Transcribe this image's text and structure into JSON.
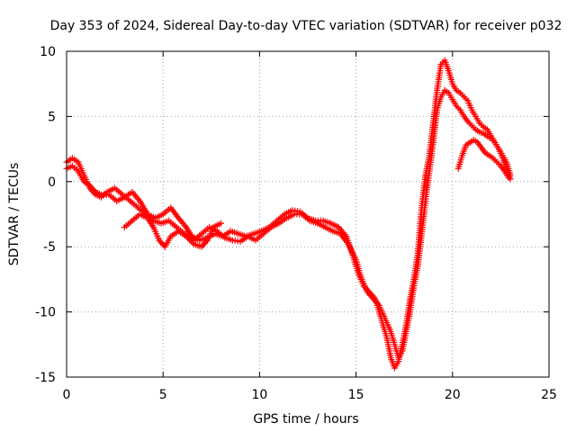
{
  "chart_data": {
    "type": "scatter",
    "title": "Day 353 of 2024, Sidereal Day-to-day VTEC variation (SDTVAR) for receiver p032",
    "xlabel": "GPS time / hours",
    "ylabel": "SDTVAR / TECUs",
    "xlim": [
      0,
      25
    ],
    "ylim": [
      -15,
      10
    ],
    "xticks": [
      0,
      5,
      10,
      15,
      20,
      25
    ],
    "xtick_labels": [
      "0",
      "5",
      "10",
      "15",
      "20",
      "25"
    ],
    "yticks": [
      -15,
      -10,
      -5,
      0,
      5,
      10
    ],
    "ytick_labels": [
      "-15",
      "-10",
      "-5",
      "0",
      "5",
      "10"
    ],
    "grid": true,
    "marker": "+",
    "color": "#ff0000",
    "series": [
      {
        "name": "p032-main",
        "x": [
          0.0,
          0.3,
          0.6,
          0.9,
          1.2,
          1.5,
          1.8,
          2.1,
          2.5,
          2.9,
          3.3,
          3.7,
          4.1,
          4.5,
          4.9,
          5.3,
          5.7,
          6.1,
          6.5,
          6.9,
          7.3,
          7.7,
          8.1,
          8.5,
          8.9,
          9.3,
          9.7,
          10.1,
          10.5,
          10.9,
          11.3,
          11.7,
          12.1,
          12.5,
          12.9,
          13.3,
          13.7,
          14.1,
          14.5,
          14.8,
          15.1,
          15.4,
          15.7,
          16.0,
          16.3,
          16.6,
          16.8,
          17.0,
          17.2,
          17.4,
          17.6,
          17.8,
          18.0,
          18.2,
          18.4,
          18.6,
          18.8,
          19.0,
          19.2,
          19.4,
          19.6,
          19.8,
          20.0,
          20.2,
          20.4,
          20.6,
          20.8,
          21.0,
          21.2,
          21.4,
          21.6,
          21.8,
          22.0,
          22.2,
          22.4,
          22.6,
          22.8,
          23.0
        ],
        "y": [
          1.5,
          1.8,
          1.5,
          0.5,
          -0.5,
          -1.0,
          -1.2,
          -0.8,
          -0.5,
          -1.0,
          -1.5,
          -2.0,
          -2.5,
          -3.0,
          -3.2,
          -3.0,
          -3.5,
          -4.0,
          -4.2,
          -4.5,
          -4.3,
          -4.0,
          -4.2,
          -3.8,
          -4.0,
          -4.2,
          -4.0,
          -3.8,
          -3.5,
          -3.0,
          -2.5,
          -2.2,
          -2.3,
          -2.8,
          -3.0,
          -3.0,
          -3.2,
          -3.5,
          -4.2,
          -5.5,
          -7.0,
          -8.0,
          -8.5,
          -9.0,
          -10.5,
          -12.0,
          -13.5,
          -14.3,
          -13.8,
          -12.5,
          -11.0,
          -9.0,
          -7.5,
          -5.5,
          -2.0,
          0.5,
          2.0,
          4.5,
          7.0,
          9.0,
          9.3,
          8.5,
          7.5,
          7.0,
          6.8,
          6.5,
          6.2,
          5.5,
          5.0,
          4.5,
          4.2,
          4.0,
          3.5,
          3.0,
          2.5,
          2.0,
          1.5,
          0.5
        ]
      },
      {
        "name": "p032-secondary",
        "x": [
          0.0,
          0.3,
          0.6,
          0.9,
          1.2,
          1.5,
          1.8,
          2.2,
          2.6,
          3.0,
          3.4,
          3.8,
          4.2,
          4.6,
          5.0,
          5.4,
          5.8,
          6.2,
          6.6,
          7.0,
          7.4,
          7.8,
          8.2,
          8.6,
          9.0,
          9.4,
          9.8,
          10.2,
          10.6,
          11.0,
          11.4,
          11.8,
          12.2,
          12.6,
          13.0,
          13.4,
          13.8,
          14.2,
          14.6,
          15.0,
          15.3,
          15.6,
          15.9,
          16.2,
          16.5,
          16.8,
          17.0,
          17.2,
          17.4,
          17.6,
          17.8,
          18.0,
          18.2,
          18.4,
          18.6,
          18.8,
          19.0,
          19.2,
          19.4,
          19.6,
          19.8,
          20.0,
          20.2,
          20.4,
          20.6,
          20.8,
          21.0,
          21.2,
          21.4,
          21.6,
          21.8,
          22.0,
          22.2,
          22.4,
          22.6,
          22.8,
          23.0
        ],
        "y": [
          1.0,
          1.2,
          0.8,
          0.0,
          -0.3,
          -0.8,
          -1.0,
          -1.0,
          -1.5,
          -1.2,
          -0.8,
          -1.5,
          -2.5,
          -2.8,
          -2.5,
          -2.0,
          -2.8,
          -3.5,
          -4.5,
          -4.0,
          -3.5,
          -3.8,
          -4.3,
          -4.5,
          -4.6,
          -4.2,
          -4.5,
          -4.0,
          -3.5,
          -3.2,
          -2.8,
          -2.5,
          -2.5,
          -3.0,
          -3.2,
          -3.5,
          -3.8,
          -4.0,
          -4.8,
          -6.0,
          -7.5,
          -8.5,
          -9.0,
          -9.5,
          -10.5,
          -11.5,
          -12.5,
          -13.5,
          -13.0,
          -11.5,
          -10.0,
          -8.0,
          -6.5,
          -4.0,
          -1.5,
          0.8,
          3.0,
          5.5,
          6.5,
          7.0,
          6.8,
          6.3,
          5.8,
          5.5,
          5.0,
          4.6,
          4.3,
          4.0,
          3.8,
          3.7,
          3.5,
          3.3,
          3.0,
          2.5,
          1.8,
          1.0,
          0.2
        ]
      },
      {
        "name": "p032-tertiary",
        "x": [
          3.0,
          3.4,
          3.8,
          4.2,
          4.5,
          4.8,
          5.1,
          5.4,
          5.8,
          6.2,
          6.6,
          7.0,
          7.3,
          7.6,
          8.0
        ],
        "y": [
          -3.5,
          -3.0,
          -2.5,
          -2.8,
          -3.5,
          -4.5,
          -5.0,
          -4.2,
          -3.8,
          -4.2,
          -4.8,
          -5.0,
          -4.5,
          -3.5,
          -3.2
        ]
      },
      {
        "name": "p032-late",
        "x": [
          20.3,
          20.5,
          20.7,
          20.9,
          21.1,
          21.3,
          21.5,
          21.7,
          21.9,
          22.1,
          22.3,
          22.5,
          22.7,
          22.9
        ],
        "y": [
          1.0,
          2.0,
          2.8,
          3.0,
          3.2,
          3.0,
          2.6,
          2.2,
          2.0,
          1.8,
          1.5,
          1.2,
          0.8,
          0.3
        ]
      }
    ]
  }
}
